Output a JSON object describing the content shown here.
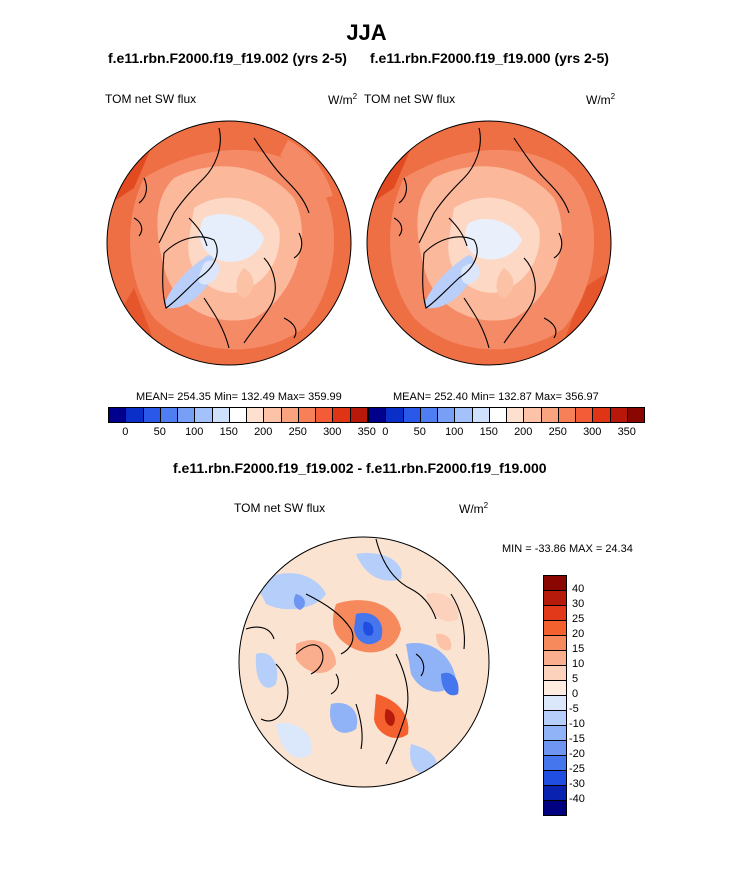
{
  "figure": {
    "season": "JJA",
    "panels": [
      {
        "case_title": "f.e11.rbn.F2000.f19_f19.002 (yrs 2-5)",
        "variable": "TOM net SW flux",
        "units_base": "W/m",
        "units_exp": "2",
        "stats": "MEAN= 254.35  Min= 132.49  Max= 359.99",
        "mean": 254.35,
        "min": 132.49,
        "max": 359.99
      },
      {
        "case_title": "f.e11.rbn.F2000.f19_f19.000 (yrs 2-5)",
        "variable": "TOM net SW flux",
        "units_base": "W/m",
        "units_exp": "2",
        "stats": "MEAN= 252.40  Min= 132.87  Max= 356.97",
        "mean": 252.4,
        "min": 132.87,
        "max": 356.97
      }
    ],
    "diff": {
      "title": "f.e11.rbn.F2000.f19_f19.002 - f.e11.rbn.F2000.f19_f19.000",
      "variable": "TOM net SW flux",
      "units_base": "W/m",
      "units_exp": "2",
      "minmax": "MIN = -33.86 MAX =  24.34",
      "min": -33.86,
      "max": 24.34
    }
  },
  "colorbars": {
    "absolute": {
      "ticks": [
        "0",
        "50",
        "100",
        "150",
        "200",
        "250",
        "300",
        "350"
      ],
      "colors": [
        "#00008c",
        "#0a2fc8",
        "#2a58e8",
        "#4f7ef2",
        "#779ff6",
        "#a3c1fa",
        "#cfe0fc",
        "#ffffff",
        "#fde0cf",
        "#fcc3a8",
        "#faa37f",
        "#f78059",
        "#f35c36",
        "#e03417",
        "#b8180a",
        "#8a0600"
      ]
    },
    "difference": {
      "labels": [
        "40",
        "30",
        "25",
        "20",
        "15",
        "10",
        "5",
        "0",
        "-5",
        "-10",
        "-15",
        "-20",
        "-25",
        "-30",
        "-40"
      ],
      "colors": [
        "#8a0600",
        "#b51a0a",
        "#e2391a",
        "#f4602e",
        "#f78a5c",
        "#faae8d",
        "#fdd2bd",
        "#fdecdf",
        "#dbe8fb",
        "#b6cefa",
        "#90b2f6",
        "#6d95f1",
        "#4676ed",
        "#1f4ee0",
        "#0a22b0",
        "#000080"
      ]
    }
  },
  "colors": {
    "map_base_abs": "#f26a42",
    "map_base_diff": "#fbe3d2",
    "land_outline": "#000000"
  }
}
